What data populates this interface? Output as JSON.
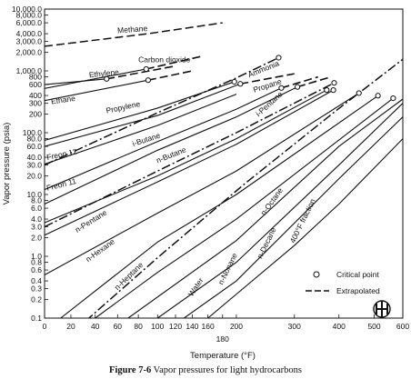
{
  "chart_data": {
    "type": "line",
    "xlabel": "Temperature (°F)",
    "ylabel": "Vapor pressure (psia)",
    "x_scale": "reciprocal (absolute temperature)",
    "y_scale": "log",
    "xlim": [
      0,
      600
    ],
    "ylim": [
      0.1,
      10000
    ],
    "x_ticks": [
      0,
      20,
      40,
      60,
      80,
      100,
      120,
      140,
      160,
      180,
      200,
      300,
      400,
      500,
      600
    ],
    "x_tick_labels_upper": [
      "0",
      "20",
      "40",
      "60",
      "80",
      "100",
      "120",
      "140",
      "160",
      "200",
      "300",
      "400",
      "500",
      "600"
    ],
    "x_tick_labels_lower": [
      "180"
    ],
    "y_ticks": [
      0.1,
      0.2,
      0.3,
      0.4,
      0.6,
      0.8,
      1.0,
      2.0,
      3.0,
      4.0,
      6.0,
      8.0,
      10,
      20,
      30,
      40,
      60,
      80,
      100,
      200,
      300,
      400,
      600,
      800,
      1000,
      2000,
      3000,
      4000,
      6000,
      8000,
      10000
    ],
    "y_tick_labels": [
      "0.1",
      "0.2",
      "0.3",
      "0.4",
      "0.6",
      "0.8",
      "1.0",
      "2.0",
      "3.0",
      "4.0",
      "6.0",
      "8.0",
      "10.0",
      "20.0",
      "30.0",
      "40.0",
      "60.0",
      "80.0",
      "100.0",
      "200",
      "300",
      "400",
      "600",
      "800",
      "1,000.0",
      "2,000.0",
      "3,000.0",
      "4,000.0",
      "6,000.0",
      "8,000.0",
      "10,000.0"
    ],
    "grid": false,
    "legend": {
      "position": "bottom-right",
      "entries": [
        {
          "label": "Critical point",
          "symbol": "open-circle"
        },
        {
          "label": "Extrapolated",
          "symbol": "dashed-line"
        }
      ]
    },
    "series": [
      {
        "name": "Methane",
        "style": "dashed",
        "points": [
          [
            0,
            2500
          ],
          [
            90,
            4000
          ],
          [
            180,
            6000
          ]
        ],
        "critical_point": null
      },
      {
        "name": "Carbon dioxide",
        "style": "solid+dashed",
        "points": [
          [
            0,
            520
          ],
          [
            88,
            1071
          ],
          [
            150,
            1700
          ]
        ],
        "critical_point": [
          88,
          1071
        ]
      },
      {
        "name": "Ethylene",
        "style": "solid+dashed",
        "points": [
          [
            0,
            600
          ],
          [
            50,
            742
          ],
          [
            120,
            1200
          ]
        ],
        "critical_point": [
          50,
          742
        ]
      },
      {
        "name": "Ethane",
        "style": "solid+dashed",
        "points": [
          [
            0,
            330
          ],
          [
            90,
            708
          ],
          [
            140,
            1000
          ]
        ],
        "critical_point": [
          90,
          708
        ]
      },
      {
        "name": "Ammonia",
        "style": "dash-dot",
        "points": [
          [
            0,
            30
          ],
          [
            100,
            210
          ],
          [
            200,
            770
          ],
          [
            270,
            1636
          ]
        ],
        "critical_point": [
          270,
          1636
        ]
      },
      {
        "name": "Propylene",
        "style": "solid",
        "points": [
          [
            0,
            75
          ],
          [
            100,
            250
          ],
          [
            197,
            667
          ]
        ],
        "critical_point": [
          197,
          667
        ]
      },
      {
        "name": "Propane",
        "style": "solid+dashed",
        "points": [
          [
            0,
            60
          ],
          [
            100,
            190
          ],
          [
            206,
            617
          ],
          [
            300,
            900
          ]
        ],
        "critical_point": [
          206,
          617
        ]
      },
      {
        "name": "Freon 12",
        "style": "solid",
        "points": [
          [
            0,
            31
          ],
          [
            100,
            131
          ],
          [
            200,
            420
          ]
        ],
        "critical_point": null
      },
      {
        "name": "i-Butane",
        "style": "solid+dashed",
        "points": [
          [
            0,
            12
          ],
          [
            100,
            72
          ],
          [
            200,
            240
          ],
          [
            275,
            529
          ],
          [
            350,
            800
          ]
        ],
        "critical_point": [
          275,
          529
        ]
      },
      {
        "name": "n-Butane",
        "style": "solid+dashed",
        "points": [
          [
            0,
            7
          ],
          [
            100,
            52
          ],
          [
            200,
            180
          ],
          [
            306,
            550
          ],
          [
            380,
            800
          ]
        ],
        "critical_point": [
          306,
          550
        ]
      },
      {
        "name": "Freon 11",
        "style": "dash-dot",
        "points": [
          [
            0,
            3
          ],
          [
            100,
            24
          ],
          [
            200,
            100
          ],
          [
            388,
            640
          ]
        ],
        "critical_point": [
          388,
          640
        ]
      },
      {
        "name": "i-Pentane",
        "style": "solid",
        "points": [
          [
            0,
            3.5
          ],
          [
            100,
            20
          ],
          [
            200,
            80
          ],
          [
            370,
            490
          ]
        ],
        "critical_point": [
          370,
          490
        ]
      },
      {
        "name": "n-Pentane",
        "style": "solid",
        "points": [
          [
            0,
            2.2
          ],
          [
            100,
            16
          ],
          [
            200,
            65
          ],
          [
            386,
            489
          ]
        ],
        "critical_point": [
          386,
          489
        ]
      },
      {
        "name": "n-Hexane",
        "style": "solid",
        "points": [
          [
            0,
            0.5
          ],
          [
            100,
            5
          ],
          [
            200,
            24
          ],
          [
            454,
            437
          ]
        ],
        "critical_point": [
          454,
          437
        ]
      },
      {
        "name": "n-Heptane",
        "style": "solid",
        "points": [
          [
            12,
            0.1
          ],
          [
            100,
            1.7
          ],
          [
            200,
            10
          ],
          [
            512,
            397
          ]
        ],
        "critical_point": [
          512,
          397
        ]
      },
      {
        "name": "Water",
        "style": "dash-dot",
        "points": [
          [
            32,
            0.09
          ],
          [
            100,
            0.95
          ],
          [
            212,
            14.7
          ],
          [
            400,
            247
          ],
          [
            600,
            1540
          ]
        ],
        "critical_point": null
      },
      {
        "name": "n-Octane",
        "style": "solid",
        "points": [
          [
            40,
            0.1
          ],
          [
            100,
            0.55
          ],
          [
            200,
            4
          ],
          [
            564,
            361
          ]
        ],
        "critical_point": [
          564,
          361
        ]
      },
      {
        "name": "n-Nonane",
        "style": "solid",
        "points": [
          [
            70,
            0.1
          ],
          [
            200,
            1.8
          ],
          [
            400,
            60
          ],
          [
            600,
            350
          ]
        ],
        "critical_point": null
      },
      {
        "name": "n-Decane",
        "style": "solid",
        "points": [
          [
            100,
            0.1
          ],
          [
            200,
            0.8
          ],
          [
            400,
            30
          ],
          [
            600,
            300
          ]
        ],
        "critical_point": null
      },
      {
        "name": "400°F fraction",
        "style": "solid",
        "points": [
          [
            130,
            0.1
          ],
          [
            200,
            0.4
          ],
          [
            400,
            18
          ],
          [
            600,
            180
          ]
        ],
        "critical_point": null
      },
      {
        "name": "",
        "style": "solid",
        "points": [
          [
            160,
            0.1
          ],
          [
            300,
            1.5
          ],
          [
            400,
            7
          ],
          [
            600,
            80
          ]
        ],
        "critical_point": null
      }
    ],
    "curve_labels": [
      "Methane",
      "Carbon dioxide",
      "Ethylene",
      "Ethane",
      "Ammonia",
      "Propylene",
      "Propane",
      "Freon 12",
      "i-Butane",
      "n-Butane",
      "i-Pentane",
      "Freon 11",
      "n-Pentane",
      "n-Hexane",
      "n-Heptane",
      "Water",
      "n-Octane",
      "n-Nonane",
      "n-Decane",
      "400°F fraction"
    ]
  },
  "figure": {
    "caption_number": "Figure 7-6",
    "caption_text": "Vapor pressures for light hydrocarbons"
  },
  "logo": {
    "icon": "publisher-logo-icon"
  }
}
